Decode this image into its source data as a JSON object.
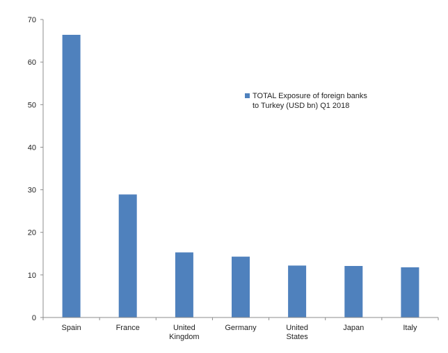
{
  "chart_data": {
    "type": "bar",
    "categories": [
      "Spain",
      "France",
      "United Kingdom",
      "Germany",
      "United States",
      "Japan",
      "Italy"
    ],
    "category_label_lines": [
      [
        "Spain"
      ],
      [
        "France"
      ],
      [
        "United",
        "Kingdom"
      ],
      [
        "Germany"
      ],
      [
        "United",
        "States"
      ],
      [
        "Japan"
      ],
      [
        "Italy"
      ]
    ],
    "series": [
      {
        "name": "TOTAL Exposure of foreign banks to Turkey (USD bn) Q1 2018",
        "values": [
          66.4,
          28.9,
          15.3,
          14.3,
          12.2,
          12.1,
          11.8
        ]
      }
    ],
    "legend_lines": [
      "TOTAL Exposure of foreign banks",
      "to Turkey (USD bn) Q1 2018"
    ],
    "ylim": [
      0,
      70
    ],
    "yticks": [
      0,
      10,
      20,
      30,
      40,
      50,
      60,
      70
    ],
    "grid": false,
    "legend_position": "top-right",
    "colors": {
      "bar": "#4f81bd",
      "axis": "#8c8c8c"
    }
  }
}
